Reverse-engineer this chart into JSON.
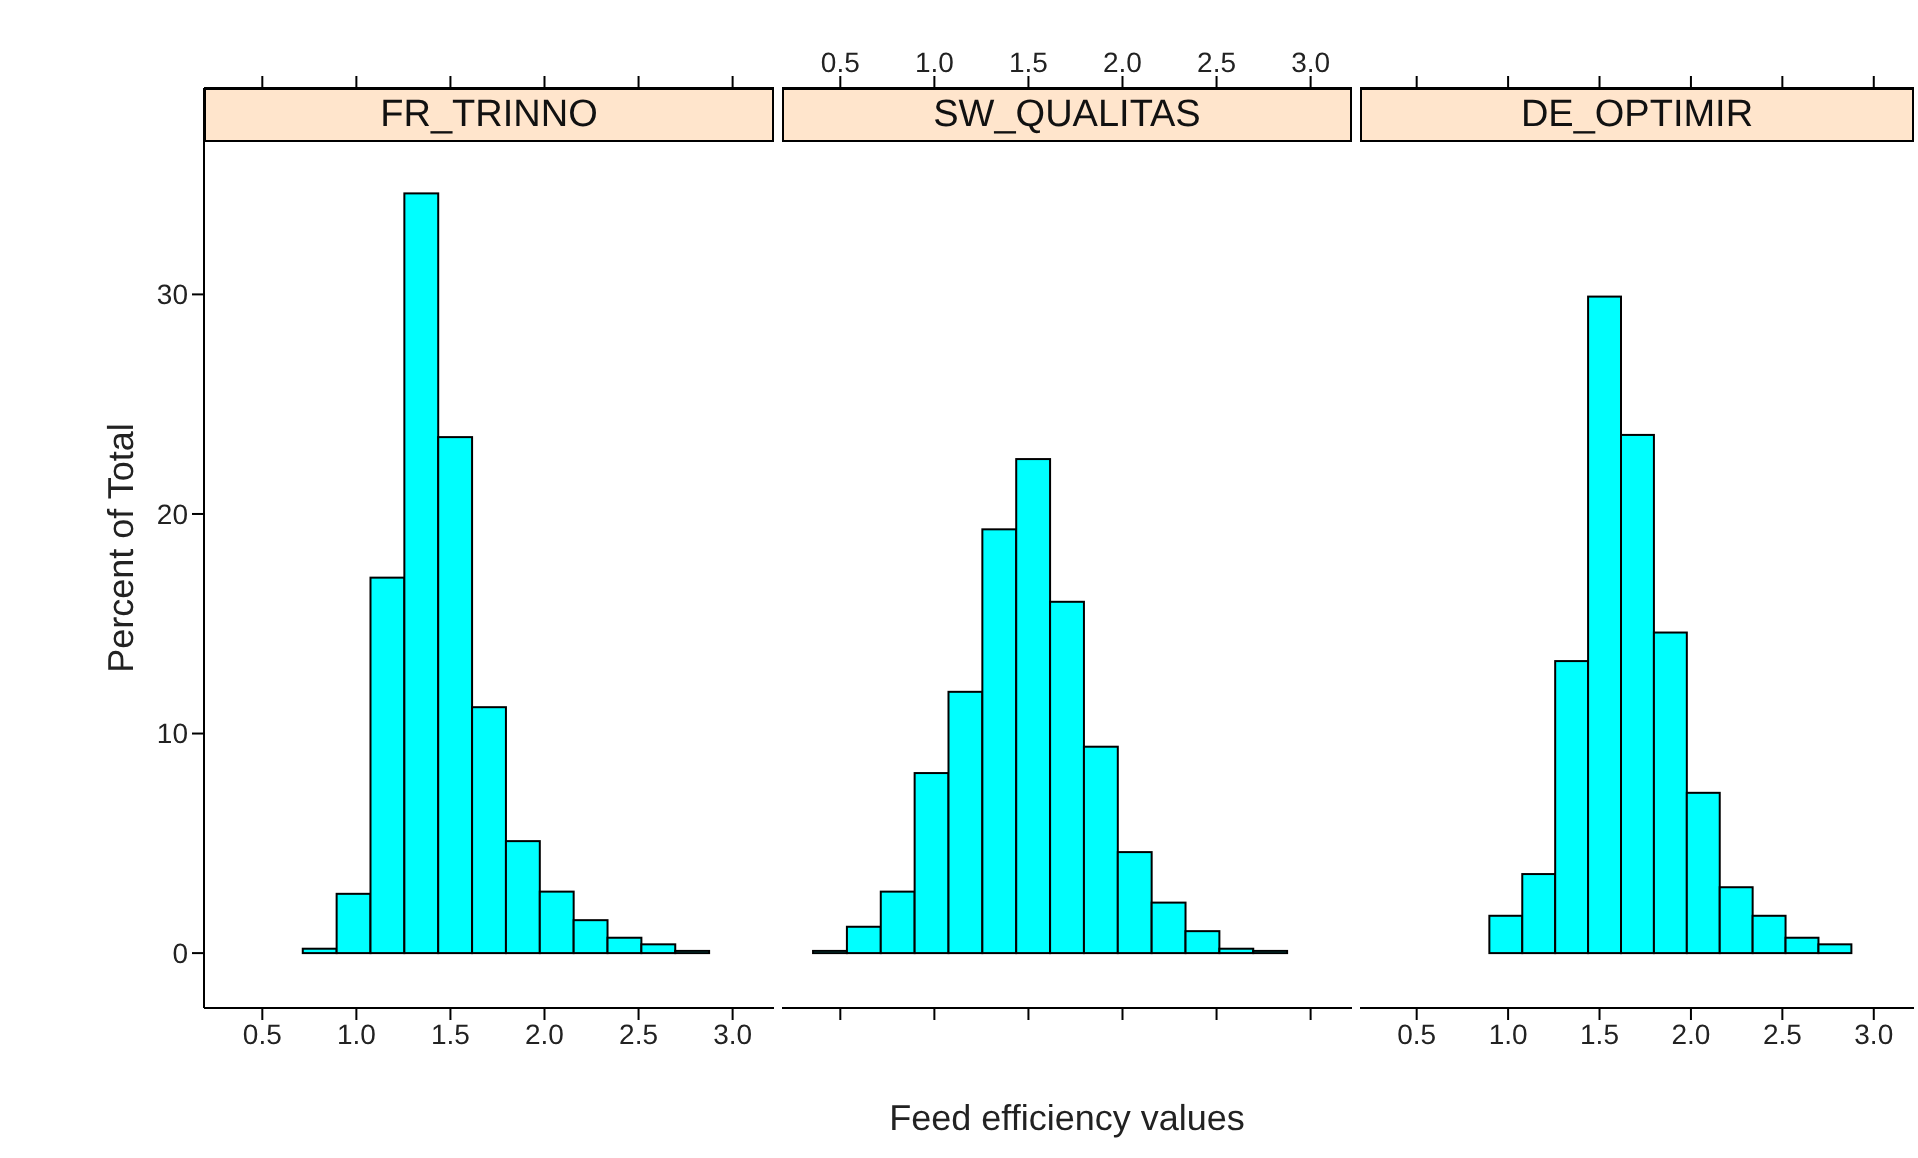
{
  "chart_data": [
    {
      "type": "histogram",
      "title": "FR_TRINNO",
      "ylabel": "Percent of Total",
      "color": "#00ffff",
      "bins": [
        0.36,
        0.54,
        0.72,
        0.9,
        1.08,
        1.26,
        1.44,
        1.62,
        1.8,
        1.98,
        2.16,
        2.34,
        2.52,
        2.7,
        2.88,
        3.06
      ],
      "values": [
        0,
        0,
        0.2,
        2.7,
        17.1,
        34.6,
        23.5,
        11.2,
        5.1,
        2.8,
        1.5,
        0.7,
        0.4,
        0.1,
        0
      ],
      "xlim": [
        0.19,
        3.22
      ],
      "xticks": [
        0.5,
        {
          "value": 1,
          "label": "1.0"
        },
        1.5,
        {
          "value": 2,
          "label": "2.0"
        },
        2.5,
        {
          "value": 3,
          "label": "3.0"
        }
      ],
      "ylim": [
        -2.5,
        39.4
      ],
      "yticks": [
        0,
        10,
        20,
        30
      ]
    },
    {
      "type": "histogram",
      "title": "SW_QUALITAS",
      "xlabel": "Feed efficiency values",
      "color": "#00ffff",
      "bins": [
        0.36,
        0.54,
        0.72,
        0.9,
        1.08,
        1.26,
        1.44,
        1.62,
        1.8,
        1.98,
        2.16,
        2.34,
        2.52,
        2.7,
        2.88,
        3.06
      ],
      "values": [
        0.1,
        1.2,
        2.8,
        8.2,
        11.9,
        19.3,
        22.5,
        16.0,
        9.4,
        4.6,
        2.3,
        1.0,
        0.2,
        0.1,
        0
      ],
      "xlim": [
        0.19,
        3.22
      ],
      "xticks": [
        0.5,
        {
          "value": 1,
          "label": "1.0"
        },
        1.5,
        {
          "value": 2,
          "label": "2.0"
        },
        2.5,
        {
          "value": 3,
          "label": "3.0"
        }
      ],
      "ylim": [
        -2.5,
        39.4
      ],
      "tick_labels": "x"
    },
    {
      "type": "histogram",
      "title": "DE_OPTIMIR",
      "color": "#00ffff",
      "bins": [
        0.36,
        0.54,
        0.72,
        0.9,
        1.08,
        1.26,
        1.44,
        1.62,
        1.8,
        1.98,
        2.16,
        2.34,
        2.52,
        2.7,
        2.88,
        3.06
      ],
      "values": [
        0,
        0,
        0,
        1.7,
        3.6,
        13.3,
        29.9,
        23.6,
        14.6,
        7.3,
        3.0,
        1.7,
        0.7,
        0.4,
        0
      ],
      "xlim": [
        0.19,
        3.22
      ],
      "xticks": [
        0.5,
        {
          "value": 1,
          "label": "1.0"
        },
        1.5,
        {
          "value": 2,
          "label": "2.0"
        },
        2.5,
        {
          "value": 3,
          "label": "3.0"
        }
      ],
      "ylim": [
        -2.5,
        39.4
      ],
      "tick_labels": "x"
    }
  ]
}
